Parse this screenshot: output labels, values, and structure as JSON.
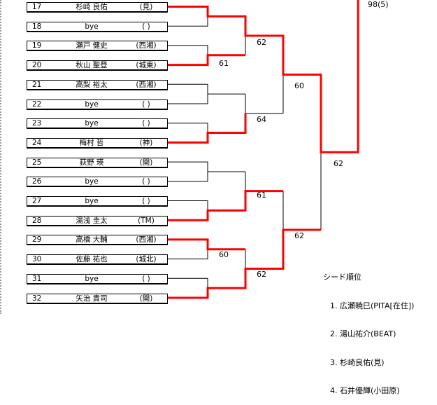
{
  "entries": [
    {
      "no": "17",
      "name": "杉崎 良佑",
      "team": "(見)"
    },
    {
      "no": "18",
      "name": "bye",
      "team": "( )"
    },
    {
      "no": "19",
      "name": "瀬戸 健史",
      "team": "(西湘)"
    },
    {
      "no": "20",
      "name": "秋山 聖登",
      "team": "(城東)"
    },
    {
      "no": "21",
      "name": "高梨 裕太",
      "team": "(西湘)"
    },
    {
      "no": "22",
      "name": "bye",
      "team": "( )"
    },
    {
      "no": "23",
      "name": "bye",
      "team": "( )"
    },
    {
      "no": "24",
      "name": "梅村 哲",
      "team": "(神)"
    },
    {
      "no": "25",
      "name": "荻野 瑛",
      "team": "(開)"
    },
    {
      "no": "26",
      "name": "bye",
      "team": "( )"
    },
    {
      "no": "27",
      "name": "bye",
      "team": "( )"
    },
    {
      "no": "28",
      "name": "湯浅 圭太",
      "team": "(TM)"
    },
    {
      "no": "29",
      "name": "高橋 大輔",
      "team": "(西湘)"
    },
    {
      "no": "30",
      "name": "佐藤 祐也",
      "team": "(城北)"
    },
    {
      "no": "31",
      "name": "bye",
      "team": "( )"
    },
    {
      "no": "32",
      "name": "矢治 貴司",
      "team": "(開)"
    }
  ],
  "scores": {
    "s1": "62",
    "s2": "61",
    "s3": "60",
    "s4": "64",
    "s5": "62",
    "s6": "61",
    "s7": "60",
    "s8": "62",
    "s9": "62",
    "top": "98(5)"
  },
  "seeds": {
    "title": "シード順位",
    "items": [
      "1. 広瀬暁巳(PITA[在住])",
      "2. 湯山祐介(BEAT)",
      "3. 杉崎良佑(見)",
      "4. 石井優輝(小田原)"
    ]
  },
  "colors": {
    "winner_line": "#ff0000",
    "line": "#000000"
  }
}
